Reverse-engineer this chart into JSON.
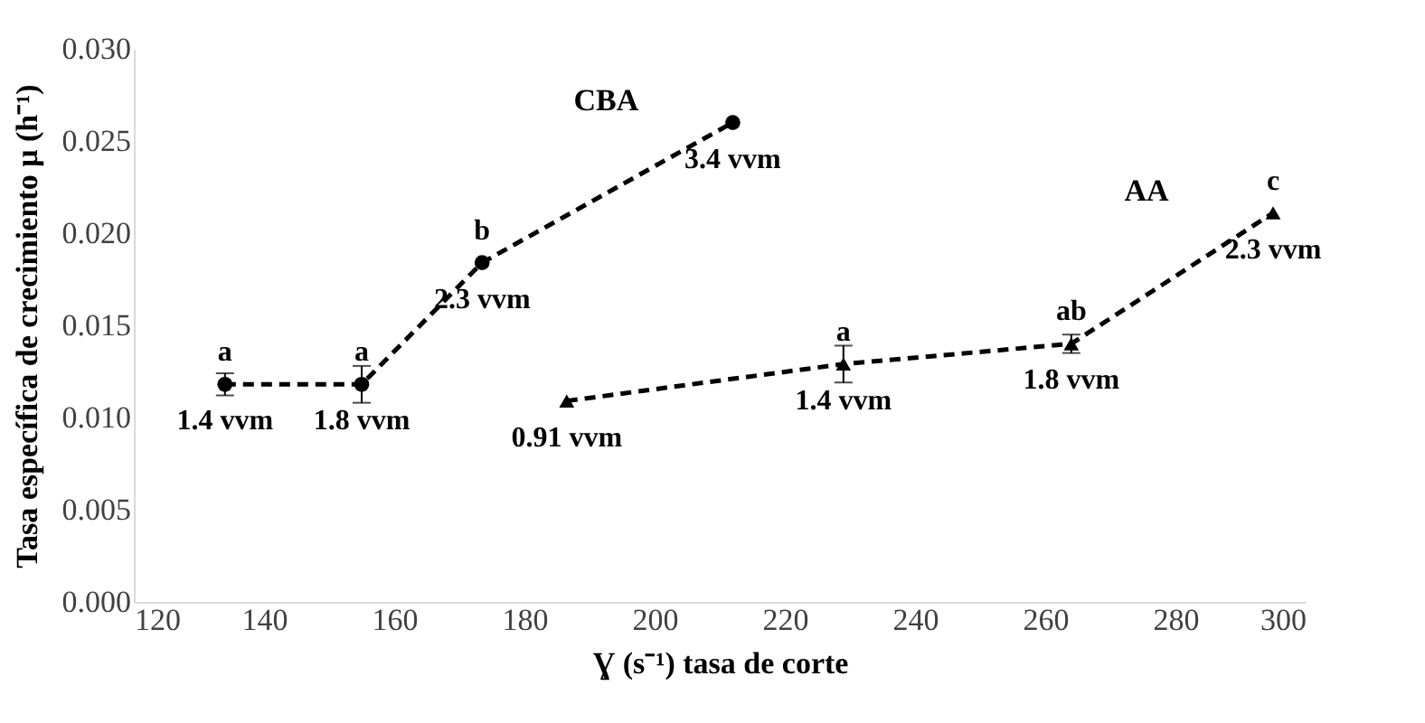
{
  "chart_data": {
    "type": "line",
    "xlabel": "Ɣ (s⁻¹) tasa de corte",
    "ylabel": "Tasa específica de crecimiento μ (h⁻¹)",
    "xlim": [
      120,
      300
    ],
    "xticks": [
      120,
      140,
      160,
      180,
      200,
      220,
      240,
      260,
      280,
      300
    ],
    "ylim": [
      0,
      0.03
    ],
    "yticks": [
      {
        "value": 0,
        "label": "0.000"
      },
      {
        "value": 0.005,
        "label": "0.005"
      },
      {
        "value": 0.01,
        "label": "0.010"
      },
      {
        "value": 0.015,
        "label": "0.015"
      },
      {
        "value": 0.02,
        "label": "0.020"
      },
      {
        "value": 0.025,
        "label": "0.025"
      },
      {
        "value": 0.03,
        "label": "0.030"
      }
    ],
    "grid": false,
    "legend": false,
    "line_style": "dashed",
    "series": [
      {
        "name": "CBA",
        "color": "#000000",
        "marker": "circle",
        "x": [
          134,
          155,
          173.5,
          212
        ],
        "values": [
          0.0118,
          0.0118,
          0.0184,
          0.026
        ],
        "errors": [
          0.0006,
          0.001,
          null,
          null
        ]
      },
      {
        "name": "AA",
        "color": "#000000",
        "marker": "triangle",
        "x": [
          186.5,
          229,
          264,
          295
        ],
        "values": [
          0.0109,
          0.0129,
          0.014,
          0.0211
        ],
        "errors": [
          null,
          0.001,
          0.0005,
          null
        ]
      }
    ],
    "annotations": [
      {
        "text": "a",
        "x": 134,
        "y": 0.0118
      },
      {
        "text": "1.4 vvm",
        "x": 134,
        "y": 0.0118
      },
      {
        "text": "a",
        "x": 155,
        "y": 0.0118
      },
      {
        "text": "1.8 vvm",
        "x": 155,
        "y": 0.0118
      },
      {
        "text": "b",
        "x": 173.5,
        "y": 0.0184
      },
      {
        "text": "2.3 vvm",
        "x": 173.5,
        "y": 0.0184
      },
      {
        "text": "3.4 vvm",
        "x": 212,
        "y": 0.026
      },
      {
        "text": "0.91 vvm",
        "x": 186.5,
        "y": 0.0109
      },
      {
        "text": "a",
        "x": 229,
        "y": 0.0129
      },
      {
        "text": "1.4 vvm",
        "x": 229,
        "y": 0.0129
      },
      {
        "text": "ab",
        "x": 264,
        "y": 0.014
      },
      {
        "text": "1.8 vvm",
        "x": 264,
        "y": 0.014
      },
      {
        "text": "2.3 vvm",
        "x": 295,
        "y": 0.0211
      },
      {
        "text": "c",
        "x": 295,
        "y": 0.0211
      }
    ]
  }
}
